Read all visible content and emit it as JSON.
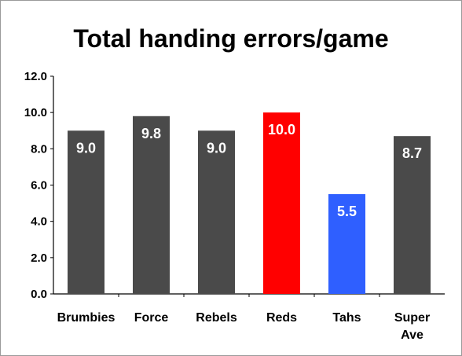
{
  "chart_data": {
    "type": "bar",
    "title": "Total handing errors/game",
    "categories": [
      [
        "Brumbies"
      ],
      [
        "Force"
      ],
      [
        "Rebels"
      ],
      [
        "Reds"
      ],
      [
        "Tahs"
      ],
      [
        "Super",
        "Ave"
      ]
    ],
    "values": [
      9.0,
      9.8,
      9.0,
      10.0,
      5.5,
      8.7
    ],
    "value_labels": [
      "9.0",
      "9.8",
      "9.0",
      "10.0",
      "5.5",
      "8.7"
    ],
    "bar_colors": [
      "#4a4a4a",
      "#4a4a4a",
      "#4a4a4a",
      "#ff0000",
      "#2f5fff",
      "#4a4a4a"
    ],
    "ylim": [
      0,
      12
    ],
    "yticks": [
      "0.0",
      "2.0",
      "4.0",
      "6.0",
      "8.0",
      "10.0",
      "12.0"
    ],
    "grid": false,
    "legend": "none"
  }
}
